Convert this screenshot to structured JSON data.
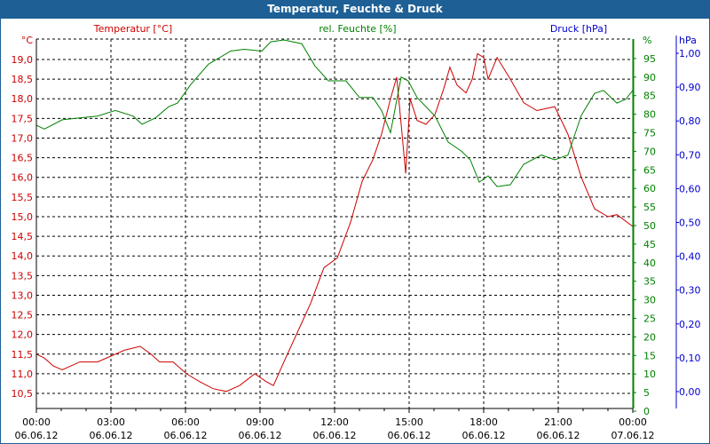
{
  "chart_data": {
    "type": "line",
    "title": "Temperatur, Feuchte & Druck",
    "axes": {
      "temperature": {
        "label": "Temperatur [°C]",
        "unit": "°C",
        "range": [
          10.25,
          19.5
        ],
        "ticks": [
          "19,0",
          "18,5",
          "18,0",
          "17,5",
          "17,0",
          "16,5",
          "16,0",
          "15,5",
          "15,0",
          "14,5",
          "14,0",
          "13,5",
          "13,0",
          "12,5",
          "12,0",
          "11,5",
          "11,0",
          "10,5"
        ],
        "tick_values": [
          19.0,
          18.5,
          18.0,
          17.5,
          17.0,
          16.5,
          16.0,
          15.5,
          15.0,
          14.5,
          14.0,
          13.5,
          13.0,
          12.5,
          12.0,
          11.5,
          11.0,
          10.5
        ],
        "color": "#cc0000"
      },
      "humidity": {
        "label": "rel. Feuchte [%]",
        "unit": "%",
        "range": [
          0,
          100
        ],
        "ticks": [
          "95",
          "90",
          "85",
          "80",
          "75",
          "70",
          "65",
          "60",
          "55",
          "50",
          "45",
          "40",
          "35",
          "30",
          "25",
          "20",
          "15",
          "10",
          "5",
          "0"
        ],
        "tick_values": [
          95,
          90,
          85,
          80,
          75,
          70,
          65,
          60,
          55,
          50,
          45,
          40,
          35,
          30,
          25,
          20,
          15,
          10,
          5,
          0
        ],
        "color": "#008000"
      },
      "pressure": {
        "label": "Druck [hPa]",
        "unit": "hPa",
        "ticks": [
          "1,00",
          "0,90",
          "0,80",
          "0,70",
          "0,60",
          "0,50",
          "0,40",
          "0,30",
          "0,20",
          "0,10",
          "0,00"
        ],
        "tick_values": [
          1.0,
          0.9,
          0.8,
          0.7,
          0.6,
          0.5,
          0.4,
          0.3,
          0.2,
          0.1,
          0.0
        ],
        "color": "#0000cc"
      }
    },
    "x_ticks": [
      {
        "time": "00:00",
        "date": "06.06.12",
        "h": 0
      },
      {
        "time": "03:00",
        "date": "06.06.12",
        "h": 3
      },
      {
        "time": "06:00",
        "date": "06.06.12",
        "h": 6
      },
      {
        "time": "09:00",
        "date": "06.06.12",
        "h": 9
      },
      {
        "time": "12:00",
        "date": "06.06.12",
        "h": 12
      },
      {
        "time": "15:00",
        "date": "06.06.12",
        "h": 15
      },
      {
        "time": "18:00",
        "date": "06.06.12",
        "h": 18
      },
      {
        "time": "21:00",
        "date": "06.06.12",
        "h": 21
      },
      {
        "time": "00:00",
        "date": "07.06.12",
        "h": 24
      }
    ],
    "grid": true,
    "series": [
      {
        "name": "Temperatur",
        "axis": "temperature",
        "color": "#cc0000",
        "points": [
          [
            0,
            11.5
          ],
          [
            0.32,
            11.4
          ],
          [
            0.68,
            11.2
          ],
          [
            1.04,
            11.1
          ],
          [
            1.39,
            11.2
          ],
          [
            1.75,
            11.3
          ],
          [
            2.1,
            11.3
          ],
          [
            2.46,
            11.3
          ],
          [
            3.0,
            11.45
          ],
          [
            3.54,
            11.6
          ],
          [
            4.18,
            11.7
          ],
          [
            4.61,
            11.5
          ],
          [
            4.96,
            11.3
          ],
          [
            5.5,
            11.3
          ],
          [
            6.04,
            11.0
          ],
          [
            6.57,
            10.8
          ],
          [
            7.11,
            10.62
          ],
          [
            7.64,
            10.55
          ],
          [
            8.18,
            10.7
          ],
          [
            8.79,
            11.0
          ],
          [
            9.25,
            10.8
          ],
          [
            9.54,
            10.7
          ],
          [
            9.96,
            11.3
          ],
          [
            10.5,
            12.05
          ],
          [
            11.04,
            12.8
          ],
          [
            11.57,
            13.7
          ],
          [
            12.11,
            13.95
          ],
          [
            12.64,
            14.85
          ],
          [
            13.11,
            15.9
          ],
          [
            13.54,
            16.45
          ],
          [
            13.89,
            17.1
          ],
          [
            14.25,
            18.0
          ],
          [
            14.5,
            18.55
          ],
          [
            14.68,
            17.35
          ],
          [
            14.86,
            16.1
          ],
          [
            15.04,
            18.0
          ],
          [
            15.32,
            17.45
          ],
          [
            15.68,
            17.35
          ],
          [
            16.04,
            17.6
          ],
          [
            16.39,
            18.25
          ],
          [
            16.64,
            18.8
          ],
          [
            16.93,
            18.35
          ],
          [
            17.29,
            18.15
          ],
          [
            17.54,
            18.5
          ],
          [
            17.75,
            19.15
          ],
          [
            18.0,
            19.05
          ],
          [
            18.18,
            18.5
          ],
          [
            18.54,
            19.05
          ],
          [
            19.07,
            18.5
          ],
          [
            19.61,
            17.9
          ],
          [
            20.14,
            17.7
          ],
          [
            20.86,
            17.8
          ],
          [
            21.39,
            17.1
          ],
          [
            21.93,
            16.0
          ],
          [
            22.46,
            15.2
          ],
          [
            23.0,
            15.0
          ],
          [
            23.36,
            15.05
          ],
          [
            24.0,
            14.75
          ]
        ]
      },
      {
        "name": "rel. Feuchte",
        "axis": "humidity",
        "color": "#008000",
        "points": [
          [
            0,
            77
          ],
          [
            0.32,
            76
          ],
          [
            1.04,
            78.5
          ],
          [
            1.75,
            79
          ],
          [
            2.46,
            79.5
          ],
          [
            3.18,
            81
          ],
          [
            3.89,
            79.5
          ],
          [
            4.25,
            77.3
          ],
          [
            4.79,
            79
          ],
          [
            5.32,
            82
          ],
          [
            5.68,
            83
          ],
          [
            6.21,
            88
          ],
          [
            6.93,
            93.5
          ],
          [
            7.82,
            97
          ],
          [
            8.36,
            97.5
          ],
          [
            9.07,
            97
          ],
          [
            9.43,
            99.5
          ],
          [
            9.96,
            100
          ],
          [
            10.68,
            99
          ],
          [
            11.21,
            93
          ],
          [
            11.75,
            89
          ],
          [
            12.46,
            89
          ],
          [
            13.0,
            84.5
          ],
          [
            13.54,
            84.5
          ],
          [
            13.89,
            81
          ],
          [
            14.25,
            75
          ],
          [
            14.68,
            90
          ],
          [
            14.96,
            89
          ],
          [
            15.32,
            84.5
          ],
          [
            16.04,
            79.5
          ],
          [
            16.57,
            72.5
          ],
          [
            17.11,
            70
          ],
          [
            17.46,
            67.7
          ],
          [
            17.82,
            61.7
          ],
          [
            18.18,
            63.4
          ],
          [
            18.54,
            60.5
          ],
          [
            19.07,
            61
          ],
          [
            19.61,
            66.5
          ],
          [
            20.32,
            69
          ],
          [
            20.86,
            67.7
          ],
          [
            21.39,
            69
          ],
          [
            21.93,
            79.7
          ],
          [
            22.46,
            85.6
          ],
          [
            22.82,
            86.4
          ],
          [
            23.36,
            83
          ],
          [
            23.71,
            84
          ],
          [
            24.0,
            86.4
          ]
        ]
      }
    ]
  }
}
